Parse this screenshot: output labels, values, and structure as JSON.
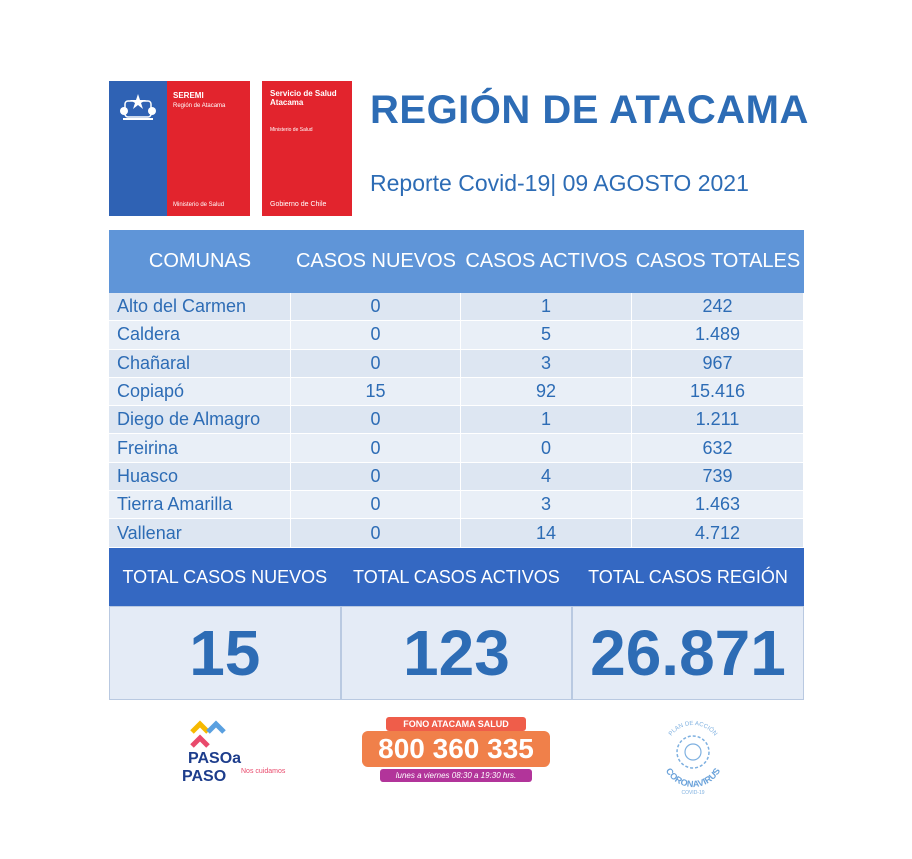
{
  "logos": {
    "seremi": {
      "title": "SEREMI",
      "region": "Región de Atacama",
      "ministry": "Ministerio de Salud"
    },
    "servicio": {
      "name": "Servicio de Salud Atacama",
      "ministry": "Ministerio de Salud",
      "gov": "Gobierno de Chile"
    }
  },
  "header": {
    "title": "REGIÓN DE ATACAMA",
    "subtitle": "Reporte Covid-19| 09 AGOSTO 2021"
  },
  "table": {
    "columns": [
      "COMUNAS",
      "CASOS NUEVOS",
      "CASOS ACTIVOS",
      "CASOS TOTALES"
    ],
    "rows": [
      [
        "Alto del Carmen",
        "0",
        "1",
        "242"
      ],
      [
        "Caldera",
        "0",
        "5",
        "1.489"
      ],
      [
        "Chañaral",
        "0",
        "3",
        "967"
      ],
      [
        "Copiapó",
        "15",
        "92",
        "15.416"
      ],
      [
        "Diego de Almagro",
        "0",
        "1",
        "1.211"
      ],
      [
        "Freirina",
        "0",
        "0",
        "632"
      ],
      [
        "Huasco",
        "0",
        "4",
        "739"
      ],
      [
        "Tierra Amarilla",
        "0",
        "3",
        "1.463"
      ],
      [
        "Vallenar",
        "0",
        "14",
        "4.712"
      ]
    ]
  },
  "totals": {
    "labels": [
      "TOTAL CASOS NUEVOS",
      "TOTAL CASOS ACTIVOS",
      "TOTAL CASOS REGIÓN"
    ],
    "values": [
      "15",
      "123",
      "26.871"
    ]
  },
  "footer": {
    "paso": {
      "line1": "PASOa",
      "line2": "PASO",
      "tag": "Nos cuidamos"
    },
    "fono": {
      "label": "FONO ATACAMA SALUD",
      "number": "800 360 335",
      "hours": "lunes a viernes 08:30 a 19:30 hrs."
    },
    "corona": {
      "top": "PLAN DE ACCIÓN",
      "word": "CORONAVIRUS",
      "sub": "COVID-19"
    }
  },
  "colors": {
    "primary": "#2d6cb5",
    "header_bg": "#5f95d8",
    "totals_bg": "#3468c2",
    "red": "#e2242d"
  }
}
